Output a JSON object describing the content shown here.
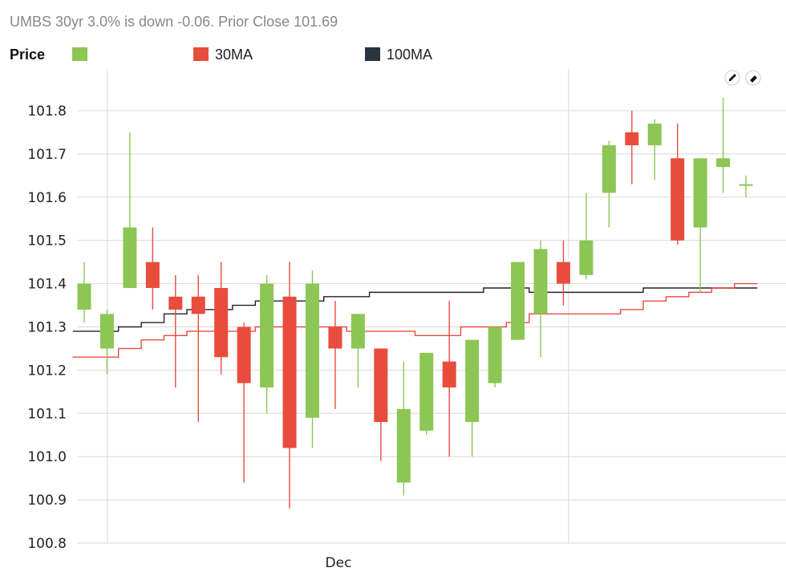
{
  "header": {
    "title": "UMBS 30yr 3.0% is down -0.06. Prior Close 101.69"
  },
  "legend": {
    "price_label": "Price",
    "entries": [
      {
        "name": "",
        "color": "#8cc654",
        "icon": "price-swatch"
      },
      {
        "name": "30MA",
        "color": "#e84c3d",
        "icon": "ma30-swatch"
      },
      {
        "name": "100MA",
        "color": "#2c3440",
        "icon": "ma100-swatch"
      }
    ]
  },
  "toolbar": {
    "icons": [
      "pencil-icon",
      "eraser-icon"
    ]
  },
  "colors": {
    "up": "#8cc654",
    "down": "#e84c3d",
    "ma30": "#e84c3d",
    "ma100": "#222222",
    "grid": "#d8d8d8"
  },
  "chart_data": {
    "type": "candlestick",
    "title": "",
    "xlabel": "",
    "ylabel": "",
    "ylim": [
      100.8,
      101.8
    ],
    "y_ticks": [
      "101.8",
      "101.7",
      "101.6",
      "101.5",
      "101.4",
      "101.3",
      "101.2",
      "101.1",
      "101.0",
      "100.9",
      "100.8"
    ],
    "x_tick_labels": [
      "Dec"
    ],
    "grid": true,
    "legend_position": "top-left",
    "candles": [
      {
        "open": 101.34,
        "high": 101.45,
        "low": 101.31,
        "close": 101.4
      },
      {
        "open": 101.25,
        "high": 101.34,
        "low": 101.19,
        "close": 101.33
      },
      {
        "open": 101.39,
        "high": 101.75,
        "low": 101.39,
        "close": 101.53
      },
      {
        "open": 101.45,
        "high": 101.53,
        "low": 101.34,
        "close": 101.39
      },
      {
        "open": 101.37,
        "high": 101.42,
        "low": 101.16,
        "close": 101.34
      },
      {
        "open": 101.37,
        "high": 101.42,
        "low": 101.08,
        "close": 101.33
      },
      {
        "open": 101.39,
        "high": 101.45,
        "low": 101.19,
        "close": 101.23
      },
      {
        "open": 101.3,
        "high": 101.31,
        "low": 100.94,
        "close": 101.17
      },
      {
        "open": 101.16,
        "high": 101.42,
        "low": 101.1,
        "close": 101.4
      },
      {
        "open": 101.37,
        "high": 101.45,
        "low": 100.88,
        "close": 101.02
      },
      {
        "open": 101.09,
        "high": 101.43,
        "low": 101.02,
        "close": 101.4
      },
      {
        "open": 101.3,
        "high": 101.36,
        "low": 101.11,
        "close": 101.25
      },
      {
        "open": 101.25,
        "high": 101.33,
        "low": 101.16,
        "close": 101.33
      },
      {
        "open": 101.25,
        "high": 101.25,
        "low": 100.99,
        "close": 101.08
      },
      {
        "open": 100.94,
        "high": 101.22,
        "low": 100.91,
        "close": 101.11
      },
      {
        "open": 101.06,
        "high": 101.24,
        "low": 101.05,
        "close": 101.24
      },
      {
        "open": 101.22,
        "high": 101.36,
        "low": 101.0,
        "close": 101.16
      },
      {
        "open": 101.08,
        "high": 101.27,
        "low": 101.0,
        "close": 101.27
      },
      {
        "open": 101.17,
        "high": 101.3,
        "low": 101.16,
        "close": 101.3
      },
      {
        "open": 101.27,
        "high": 101.45,
        "low": 101.27,
        "close": 101.45
      },
      {
        "open": 101.33,
        "high": 101.5,
        "low": 101.23,
        "close": 101.48
      },
      {
        "open": 101.45,
        "high": 101.5,
        "low": 101.35,
        "close": 101.4
      },
      {
        "open": 101.42,
        "high": 101.61,
        "low": 101.41,
        "close": 101.5
      },
      {
        "open": 101.61,
        "high": 101.73,
        "low": 101.53,
        "close": 101.72
      },
      {
        "open": 101.75,
        "high": 101.8,
        "low": 101.63,
        "close": 101.72
      },
      {
        "open": 101.72,
        "high": 101.78,
        "low": 101.64,
        "close": 101.77
      },
      {
        "open": 101.69,
        "high": 101.77,
        "low": 101.49,
        "close": 101.5
      },
      {
        "open": 101.53,
        "high": 101.69,
        "low": 101.38,
        "close": 101.69
      },
      {
        "open": 101.67,
        "high": 101.83,
        "low": 101.61,
        "close": 101.69
      },
      {
        "open": 101.63,
        "high": 101.65,
        "low": 101.6,
        "close": 101.63
      }
    ],
    "series": [
      {
        "name": "30MA",
        "values": [
          101.23,
          101.23,
          101.25,
          101.27,
          101.28,
          101.29,
          101.29,
          101.29,
          101.3,
          101.3,
          101.3,
          101.3,
          101.29,
          101.29,
          101.29,
          101.28,
          101.28,
          101.3,
          101.3,
          101.31,
          101.33,
          101.33,
          101.33,
          101.33,
          101.34,
          101.36,
          101.37,
          101.38,
          101.39,
          101.4
        ]
      },
      {
        "name": "100MA",
        "values": [
          101.29,
          101.29,
          101.3,
          101.31,
          101.33,
          101.34,
          101.34,
          101.35,
          101.36,
          101.36,
          101.36,
          101.37,
          101.37,
          101.38,
          101.38,
          101.38,
          101.38,
          101.38,
          101.39,
          101.39,
          101.38,
          101.38,
          101.38,
          101.38,
          101.38,
          101.39,
          101.39,
          101.39,
          101.39,
          101.39
        ]
      }
    ]
  }
}
